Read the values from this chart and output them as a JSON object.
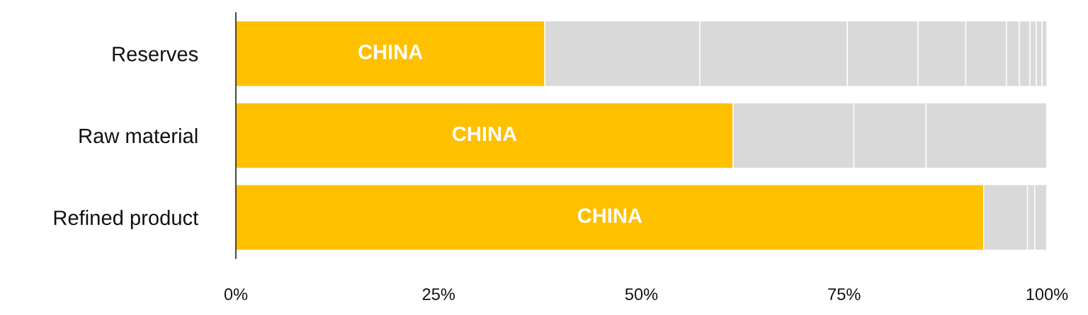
{
  "chart_data": {
    "type": "bar",
    "orientation": "horizontal",
    "stacked": true,
    "categories": [
      "Reserves",
      "Raw material",
      "Refined product"
    ],
    "series": [
      {
        "name": "CHINA",
        "color": "#ffc000",
        "values": [
          38.1,
          61.3,
          92.2
        ]
      },
      {
        "color": "#d9d9d9",
        "values": [
          19.1,
          14.9,
          5.4
        ]
      },
      {
        "color": "#d9d9d9",
        "values": [
          18.2,
          8.9,
          0.9
        ]
      },
      {
        "color": "#d9d9d9",
        "values": [
          8.7,
          14.9,
          1.5
        ]
      },
      {
        "color": "#d9d9d9",
        "values": [
          5.9,
          null,
          null
        ]
      },
      {
        "color": "#d9d9d9",
        "values": [
          5.0,
          null,
          null
        ]
      },
      {
        "color": "#d9d9d9",
        "values": [
          1.6,
          null,
          null
        ]
      },
      {
        "color": "#d9d9d9",
        "values": [
          1.3,
          null,
          null
        ]
      },
      {
        "color": "#d9d9d9",
        "values": [
          0.8,
          null,
          null
        ]
      },
      {
        "color": "#d9d9d9",
        "values": [
          0.7,
          null,
          null
        ]
      },
      {
        "color": "#d9d9d9",
        "values": [
          0.6,
          null,
          null
        ]
      }
    ],
    "xlim": [
      0,
      100
    ],
    "xticks": [
      {
        "value": 0,
        "label": "0%"
      },
      {
        "value": 25,
        "label": "25%"
      },
      {
        "value": 50,
        "label": "50%"
      },
      {
        "value": 75,
        "label": "75%"
      },
      {
        "value": 100,
        "label": "100%"
      }
    ]
  }
}
